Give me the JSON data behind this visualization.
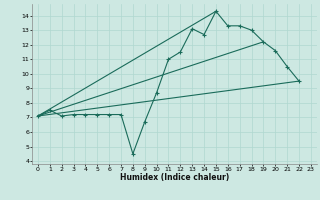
{
  "xlabel": "Humidex (Indice chaleur)",
  "ylabel": "",
  "bg_color": "#cde8e2",
  "grid_color": "#b0d8d0",
  "line_color": "#1a6b5a",
  "xlim": [
    -0.5,
    23.5
  ],
  "ylim": [
    3.8,
    14.8
  ],
  "xticks": [
    0,
    1,
    2,
    3,
    4,
    5,
    6,
    7,
    8,
    9,
    10,
    11,
    12,
    13,
    14,
    15,
    16,
    17,
    18,
    19,
    20,
    21,
    22,
    23
  ],
  "yticks": [
    4,
    5,
    6,
    7,
    8,
    9,
    10,
    11,
    12,
    13,
    14
  ],
  "line1_x": [
    0,
    1,
    2,
    3,
    4,
    5,
    6,
    7,
    8,
    9,
    10,
    11,
    12,
    13,
    14,
    15,
    16,
    17,
    18,
    19,
    20,
    21,
    22
  ],
  "line1_y": [
    7.1,
    7.5,
    7.1,
    7.2,
    7.2,
    7.2,
    7.2,
    7.2,
    4.5,
    6.7,
    8.7,
    11.0,
    11.5,
    13.1,
    12.7,
    14.3,
    13.3,
    13.3,
    13.0,
    12.2,
    11.6,
    10.5,
    9.5
  ],
  "line2_x": [
    0,
    22
  ],
  "line2_y": [
    7.1,
    9.5
  ],
  "line3_x": [
    0,
    19
  ],
  "line3_y": [
    7.1,
    12.2
  ],
  "line4_x": [
    0,
    15
  ],
  "line4_y": [
    7.1,
    14.3
  ]
}
